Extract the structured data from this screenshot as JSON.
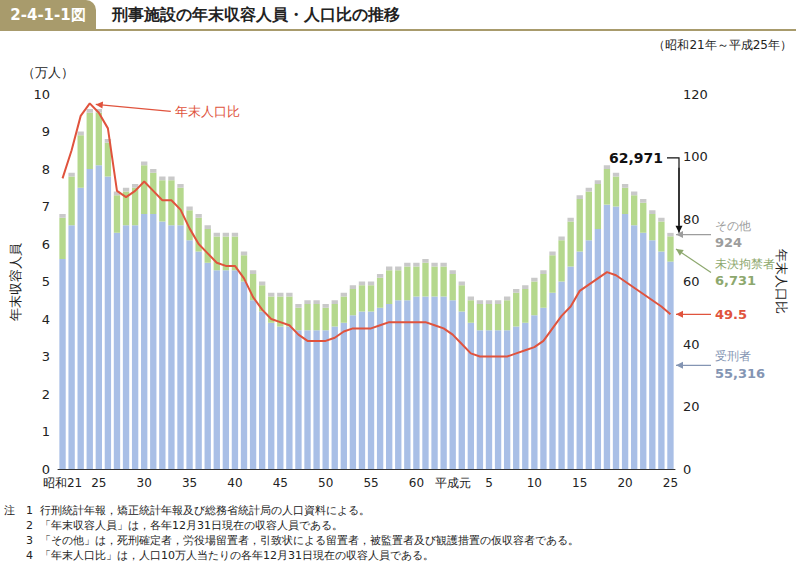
{
  "chart_data": {
    "type": "bar",
    "figure_number": "2-4-1-1図",
    "title": "刑事施設の年末収容人員・人口比の推移",
    "subtitle": "（昭和21年～平成25年）",
    "y_unit": "（万人）",
    "ylabel": "年末収容人員",
    "y2label": "年末人口比",
    "stacked": true,
    "grid": false,
    "categories": [
      "昭和21",
      null,
      null,
      null,
      "25",
      null,
      null,
      null,
      null,
      "30",
      null,
      null,
      null,
      null,
      "35",
      null,
      null,
      null,
      null,
      "40",
      null,
      null,
      null,
      null,
      "45",
      null,
      null,
      null,
      null,
      "50",
      null,
      null,
      null,
      null,
      "55",
      null,
      null,
      null,
      null,
      "60",
      null,
      null,
      null,
      "平成元",
      null,
      null,
      null,
      "5",
      null,
      null,
      null,
      null,
      "10",
      null,
      null,
      null,
      null,
      "15",
      null,
      null,
      null,
      null,
      "20",
      null,
      null,
      null,
      null,
      "25"
    ],
    "ylim": [
      0,
      10
    ],
    "yticks": [
      0,
      1,
      2,
      3,
      4,
      5,
      6,
      7,
      8,
      9,
      10
    ],
    "y2lim": [
      0,
      120
    ],
    "y2ticks": [
      0,
      20,
      40,
      60,
      80,
      100,
      120
    ],
    "series": [
      {
        "name": "受刑者",
        "color": "#a9bfe6",
        "values": [
          5.6,
          6.5,
          7.5,
          8.0,
          8.1,
          7.8,
          6.3,
          6.5,
          6.5,
          6.8,
          6.8,
          6.6,
          6.5,
          6.5,
          6.1,
          5.8,
          5.5,
          5.3,
          5.3,
          5.3,
          5.0,
          4.5,
          4.2,
          3.9,
          3.8,
          3.8,
          3.7,
          3.7,
          3.7,
          3.7,
          3.8,
          3.9,
          4.1,
          4.2,
          4.2,
          4.3,
          4.4,
          4.5,
          4.5,
          4.6,
          4.6,
          4.6,
          4.6,
          4.5,
          4.2,
          3.9,
          3.7,
          3.7,
          3.7,
          3.7,
          3.8,
          3.9,
          4.1,
          4.3,
          4.7,
          5.0,
          5.4,
          5.8,
          6.1,
          6.4,
          7.05,
          7.0,
          6.8,
          6.5,
          6.3,
          6.1,
          5.8,
          5.5316
        ]
      },
      {
        "name": "未決拘禁者",
        "color": "#b5d88d",
        "values": [
          1.1,
          1.3,
          1.4,
          1.5,
          1.4,
          0.9,
          1.0,
          0.9,
          1.0,
          1.3,
          1.1,
          1.1,
          1.2,
          1.0,
          0.8,
          0.9,
          0.9,
          0.9,
          0.9,
          0.9,
          0.7,
          0.7,
          0.7,
          0.7,
          0.8,
          0.8,
          0.6,
          0.7,
          0.7,
          0.6,
          0.6,
          0.7,
          0.7,
          0.7,
          0.7,
          0.8,
          0.9,
          0.8,
          0.9,
          0.8,
          0.9,
          0.8,
          0.8,
          0.7,
          0.7,
          0.6,
          0.7,
          0.7,
          0.7,
          0.8,
          0.9,
          0.9,
          0.9,
          0.9,
          1.0,
          1.1,
          1.2,
          1.4,
          1.3,
          1.2,
          0.95,
          0.8,
          0.7,
          0.8,
          0.8,
          0.7,
          0.8,
          0.6731
        ]
      },
      {
        "name": "その他",
        "color": "#c9c9c9",
        "values": [
          0.1,
          0.1,
          0.1,
          0.1,
          0.1,
          0.1,
          0.1,
          0.1,
          0.1,
          0.1,
          0.1,
          0.1,
          0.1,
          0.1,
          0.1,
          0.1,
          0.1,
          0.1,
          0.1,
          0.1,
          0.1,
          0.1,
          0.1,
          0.1,
          0.1,
          0.1,
          0.1,
          0.1,
          0.1,
          0.1,
          0.1,
          0.1,
          0.1,
          0.1,
          0.1,
          0.1,
          0.1,
          0.1,
          0.1,
          0.1,
          0.1,
          0.1,
          0.1,
          0.1,
          0.1,
          0.1,
          0.1,
          0.1,
          0.1,
          0.1,
          0.1,
          0.1,
          0.1,
          0.1,
          0.1,
          0.1,
          0.1,
          0.1,
          0.1,
          0.1,
          0.1,
          0.1,
          0.1,
          0.1,
          0.1,
          0.1,
          0.1,
          0.0924
        ]
      },
      {
        "name": "年末人口比",
        "type": "line",
        "axis": "y2",
        "color": "#e0533d",
        "values": [
          93,
          102,
          113,
          117,
          114,
          109,
          89,
          87,
          89,
          92,
          89,
          86,
          86,
          83,
          77,
          72,
          69,
          66,
          65,
          65,
          61,
          55,
          51,
          48,
          47,
          46,
          43,
          41,
          41,
          41,
          42,
          44,
          45,
          45,
          45,
          46,
          47,
          47,
          47,
          47,
          47,
          46,
          45,
          43,
          40,
          37,
          36,
          36,
          36,
          36,
          37,
          38,
          39,
          41,
          45,
          49,
          52,
          57,
          59,
          61,
          63,
          62,
          60,
          58,
          56,
          54,
          52,
          49.5
        ]
      }
    ],
    "annotations": [
      {
        "text": "62,971",
        "value": 6.2971
      },
      {
        "text": "924",
        "value": 0.0924,
        "series": "その他"
      },
      {
        "text": "6,731",
        "value": 0.6731,
        "series": "未決拘禁者"
      },
      {
        "text": "49.5",
        "value": 49.5,
        "series": "年末人口比"
      },
      {
        "text": "55,316",
        "value": 5.5316,
        "series": "受刑者"
      }
    ],
    "notes": {
      "label": "注",
      "items": [
        {
          "number": "1",
          "text": "行刑統計年報，矯正統計年報及び総務省統計局の人口資料による。"
        },
        {
          "number": "2",
          "text": "「年末収容人員」は，各年12月31日現在の収容人員である。"
        },
        {
          "number": "3",
          "text": "「その他」は，死刑確定者，労役場留置者，引致状による留置者，被監置者及び観護措置の仮収容者である。"
        },
        {
          "number": "4",
          "text": "「年末人口比」は，人口10万人当たりの各年12月31日現在の収容人員である。"
        }
      ]
    }
  }
}
